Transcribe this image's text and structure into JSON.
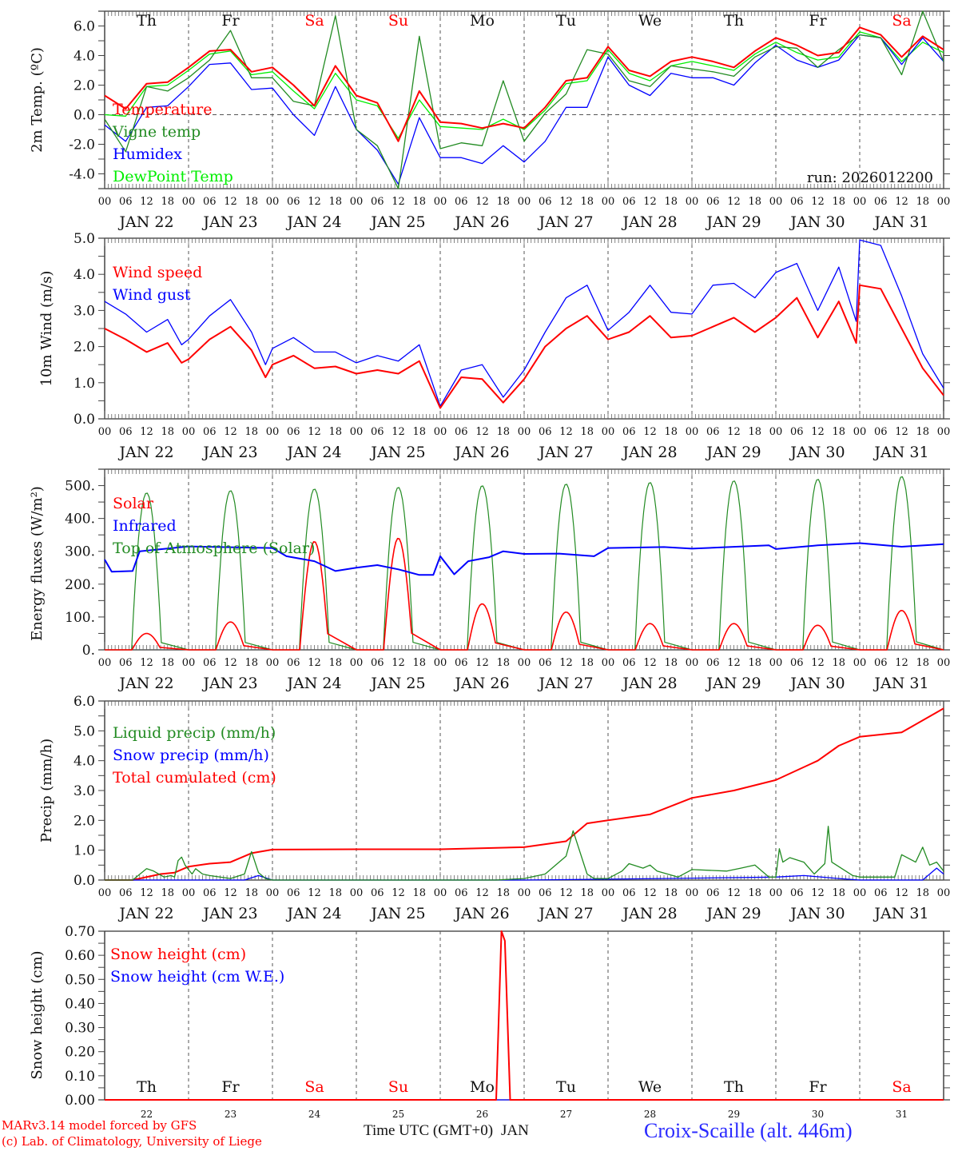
{
  "footer": {
    "model": "MARv3.14 model forced by GFS",
    "copyright": "(c) Lab. of Climatology, University of Liege",
    "xlabel": "Time UTC (GMT+0)",
    "xlabel_overlap": "JAN",
    "station": "Croix-Scaille (alt. 446m)"
  },
  "colors": {
    "red": "#ff0000",
    "green": "#228b22",
    "blue": "#0000ff",
    "lightgreen": "#00ee00",
    "weekend": "#ff0000"
  },
  "days": [
    "Th",
    "Fr",
    "Sa",
    "Su",
    "Mo",
    "Tu",
    "We",
    "Th",
    "Fr",
    "Sa"
  ],
  "weekend_flags": [
    false,
    false,
    true,
    true,
    false,
    false,
    false,
    false,
    false,
    true
  ],
  "date_labels": [
    "JAN 22",
    "JAN 23",
    "JAN 24",
    "JAN 25",
    "JAN 26",
    "JAN 27",
    "JAN 28",
    "JAN 29",
    "JAN 30",
    "JAN 31"
  ],
  "bottom_day_numbers": [
    "22",
    "23",
    "24",
    "25",
    "26",
    "27",
    "28",
    "29",
    "30",
    "31"
  ],
  "hour_ticks": [
    "00",
    "06",
    "12",
    "18"
  ],
  "hour_end": "00",
  "chart_data": [
    {
      "type": "line",
      "title": "2m Temperature",
      "ylabel": "2m Temp. (ºC)",
      "ylim": [
        -5,
        7
      ],
      "yticks": [
        "-4.0",
        "-2.0",
        "0.0",
        "2.0",
        "4.0",
        "6.0"
      ],
      "ytick_values": [
        -4,
        -2,
        0,
        2,
        4,
        6
      ],
      "annotation": "run: 2026012200",
      "x_hours": [
        0,
        6,
        12,
        18,
        24,
        30,
        36,
        42,
        48,
        54,
        60,
        66,
        72,
        78,
        84,
        90,
        96,
        102,
        108,
        114,
        120,
        126,
        132,
        138,
        144,
        150,
        156,
        162,
        168,
        174,
        180,
        186,
        192,
        198,
        204,
        210,
        216,
        222,
        228,
        234,
        240
      ],
      "series": [
        {
          "name": "Temperature",
          "color": "red",
          "values": [
            1.3,
            0.4,
            2.1,
            2.2,
            3.2,
            4.3,
            4.4,
            2.9,
            3.2,
            2.0,
            0.6,
            3.3,
            1.3,
            0.8,
            -1.8,
            1.6,
            -0.5,
            -0.6,
            -0.9,
            -0.6,
            -0.9,
            0.5,
            2.3,
            2.5,
            4.6,
            3.0,
            2.6,
            3.6,
            3.9,
            3.6,
            3.2,
            4.3,
            5.2,
            4.7,
            4.0,
            4.2,
            5.9,
            5.4,
            3.9,
            5.3,
            4.4
          ]
        },
        {
          "name": "Vigne temp",
          "color": "green",
          "values": [
            -0.3,
            -2.5,
            1.9,
            1.6,
            2.5,
            3.7,
            5.7,
            2.5,
            2.5,
            0.9,
            0.6,
            6.7,
            -1.0,
            -2.1,
            -5.0,
            5.3,
            -2.3,
            -1.9,
            -2.1,
            2.3,
            -1.8,
            0.1,
            1.4,
            4.4,
            4.1,
            2.3,
            1.9,
            3.3,
            3.1,
            2.9,
            2.6,
            3.9,
            4.6,
            4.5,
            3.2,
            4.4,
            5.4,
            5.2,
            2.7,
            7.0,
            3.6
          ]
        },
        {
          "name": "Humidex",
          "color": "blue",
          "values": [
            -0.7,
            -1.8,
            0.5,
            0.6,
            1.9,
            3.4,
            3.5,
            1.7,
            1.8,
            0.0,
            -1.4,
            1.9,
            -1.0,
            -2.4,
            -4.7,
            -0.2,
            -2.9,
            -2.9,
            -3.3,
            -2.1,
            -3.2,
            -1.8,
            0.5,
            0.5,
            3.9,
            2.0,
            1.3,
            2.8,
            2.5,
            2.5,
            2.0,
            3.5,
            4.7,
            3.7,
            3.2,
            3.7,
            5.4,
            5.2,
            3.4,
            5.2,
            3.6
          ]
        },
        {
          "name": "DewPoint Temp",
          "color": "lightgreen",
          "values": [
            0.0,
            -0.1,
            1.9,
            2.0,
            3.0,
            4.1,
            4.3,
            2.7,
            2.9,
            1.6,
            0.4,
            2.8,
            1.0,
            0.6,
            -1.6,
            1.0,
            -0.8,
            -0.9,
            -1.0,
            -0.3,
            -1.0,
            0.3,
            2.1,
            2.3,
            4.4,
            2.8,
            2.3,
            3.3,
            3.6,
            3.3,
            3.0,
            4.1,
            4.9,
            4.2,
            3.7,
            3.9,
            5.6,
            5.2,
            3.6,
            4.9,
            4.2
          ]
        }
      ]
    },
    {
      "type": "line",
      "title": "10m Wind",
      "ylabel": "10m Wind (m/s)",
      "ylim": [
        0,
        5
      ],
      "yticks": [
        "0.0",
        "1.0",
        "2.0",
        "3.0",
        "4.0",
        "5.0"
      ],
      "ytick_values": [
        0,
        1,
        2,
        3,
        4,
        5
      ],
      "x_hours": [
        0,
        6,
        12,
        18,
        22,
        24,
        30,
        36,
        42,
        46,
        48,
        54,
        60,
        66,
        72,
        78,
        84,
        90,
        96,
        102,
        108,
        114,
        120,
        126,
        132,
        138,
        144,
        150,
        156,
        162,
        168,
        174,
        180,
        186,
        192,
        198,
        204,
        210,
        215,
        216,
        222,
        228,
        234,
        240
      ],
      "series": [
        {
          "name": "Wind speed",
          "color": "red",
          "values": [
            2.5,
            2.2,
            1.85,
            2.1,
            1.55,
            1.65,
            2.2,
            2.55,
            1.9,
            1.15,
            1.5,
            1.75,
            1.4,
            1.45,
            1.25,
            1.35,
            1.25,
            1.6,
            0.3,
            1.15,
            1.1,
            0.45,
            1.1,
            2.0,
            2.5,
            2.85,
            2.2,
            2.4,
            2.85,
            2.25,
            2.3,
            2.55,
            2.8,
            2.4,
            2.8,
            3.35,
            2.25,
            3.25,
            2.1,
            3.7,
            3.6,
            2.5,
            1.4,
            0.65
          ]
        },
        {
          "name": "Wind gust",
          "color": "blue",
          "values": [
            3.25,
            2.9,
            2.4,
            2.75,
            2.05,
            2.2,
            2.85,
            3.3,
            2.4,
            1.5,
            1.95,
            2.25,
            1.85,
            1.85,
            1.55,
            1.75,
            1.6,
            2.05,
            0.35,
            1.35,
            1.5,
            0.6,
            1.35,
            2.4,
            3.35,
            3.7,
            2.45,
            2.95,
            3.7,
            2.95,
            2.9,
            3.7,
            3.75,
            3.35,
            4.05,
            4.3,
            3.0,
            4.2,
            2.7,
            4.95,
            4.8,
            3.4,
            1.8,
            0.85
          ]
        }
      ]
    },
    {
      "type": "line",
      "title": "Energy fluxes",
      "ylabel": "Energy fluxes (W/m²)",
      "ylim": [
        0,
        550
      ],
      "yticks": [
        "0.",
        "100.",
        "200.",
        "300.",
        "400.",
        "500."
      ],
      "ytick_values": [
        0,
        100,
        200,
        300,
        400,
        500
      ],
      "solar_peaks": [
        50,
        85,
        330,
        340,
        140,
        115,
        80,
        80,
        75,
        120
      ],
      "toa_peaks": [
        478,
        485,
        490,
        495,
        500,
        505,
        510,
        515,
        520,
        528
      ],
      "series": [
        {
          "name": "Solar",
          "color": "red",
          "values_note": "daily peaks",
          "values": [
            50,
            85,
            330,
            340,
            140,
            115,
            80,
            80,
            75,
            120
          ]
        },
        {
          "name": "Infrared",
          "color": "blue",
          "x_hours": [
            0,
            2,
            8,
            10,
            24,
            48,
            52,
            60,
            66,
            72,
            78,
            84,
            90,
            94,
            96,
            100,
            104,
            110,
            114,
            120,
            130,
            140,
            144,
            160,
            168,
            190,
            192,
            204,
            216,
            228,
            240
          ],
          "values": [
            275,
            238,
            240,
            300,
            315,
            310,
            285,
            270,
            240,
            250,
            258,
            245,
            228,
            228,
            285,
            230,
            270,
            282,
            300,
            292,
            293,
            285,
            310,
            313,
            308,
            318,
            307,
            318,
            325,
            314,
            322
          ]
        },
        {
          "name": "Top of Atmosphere (Solar)",
          "color": "green",
          "values_note": "daily peaks",
          "values": [
            478,
            485,
            490,
            495,
            500,
            505,
            510,
            515,
            520,
            528
          ]
        }
      ]
    },
    {
      "type": "line",
      "title": "Precip",
      "ylabel": "Precip (mm/h)",
      "ylim": [
        0,
        6
      ],
      "yticks": [
        "0.0",
        "1.0",
        "2.0",
        "3.0",
        "4.0",
        "5.0",
        "6.0"
      ],
      "ytick_values": [
        0,
        1,
        2,
        3,
        4,
        5,
        6
      ],
      "series": [
        {
          "name": "Liquid precip (mm/h)",
          "color": "green",
          "x_hours": [
            0,
            8,
            12,
            14,
            17,
            19,
            20,
            21,
            22,
            23,
            25,
            26,
            28,
            30,
            36,
            40,
            42,
            44,
            46,
            48,
            112,
            120,
            126,
            132,
            134,
            138,
            140,
            144,
            148,
            150,
            154,
            156,
            158,
            164,
            168,
            178,
            182,
            186,
            190,
            192,
            193,
            194,
            196,
            200,
            203,
            206,
            207,
            208,
            214,
            216,
            226,
            228,
            232,
            234,
            236,
            238,
            240
          ],
          "values": [
            0,
            0,
            0.38,
            0.3,
            0.1,
            0.15,
            0.1,
            0.65,
            0.77,
            0.5,
            0.2,
            0.38,
            0.2,
            0.15,
            0.05,
            0.2,
            0.95,
            0.25,
            0.05,
            0.0,
            0.0,
            0.05,
            0.2,
            0.8,
            1.65,
            0.2,
            0.05,
            0.05,
            0.3,
            0.55,
            0.4,
            0.5,
            0.3,
            0.1,
            0.35,
            0.3,
            0.4,
            0.5,
            0.1,
            0.1,
            1.05,
            0.6,
            0.75,
            0.6,
            0.2,
            0.55,
            1.8,
            0.6,
            0.15,
            0.1,
            0.1,
            0.85,
            0.6,
            1.1,
            0.5,
            0.6,
            0.3
          ]
        },
        {
          "name": "Snow precip (mm/h)",
          "color": "blue",
          "x_hours": [
            0,
            40,
            44,
            48,
            120,
            160,
            192,
            200,
            210,
            216,
            234,
            238,
            240
          ],
          "values": [
            0,
            0,
            0.15,
            0,
            0,
            0.05,
            0.1,
            0.15,
            0.05,
            0,
            0,
            0.4,
            0.2
          ]
        },
        {
          "name": "Total cumulated (cm)",
          "color": "red",
          "x_hours": [
            0,
            8,
            16,
            20,
            24,
            30,
            36,
            42,
            48,
            72,
            96,
            120,
            132,
            138,
            144,
            156,
            168,
            180,
            192,
            204,
            210,
            216,
            228,
            234,
            240
          ],
          "values": [
            0,
            0,
            0.2,
            0.25,
            0.45,
            0.55,
            0.6,
            0.9,
            1.02,
            1.03,
            1.03,
            1.1,
            1.3,
            1.9,
            2.0,
            2.2,
            2.75,
            3.0,
            3.35,
            4.0,
            4.5,
            4.8,
            4.95,
            5.35,
            5.75
          ]
        }
      ]
    },
    {
      "type": "line",
      "title": "Snow height",
      "ylabel": "Snow height (cm)",
      "ylim": [
        0,
        0.7
      ],
      "yticks": [
        "0.00",
        "0.10",
        "0.20",
        "0.30",
        "0.40",
        "0.50",
        "0.60",
        "0.70"
      ],
      "ytick_values": [
        0,
        0.1,
        0.2,
        0.3,
        0.4,
        0.5,
        0.6,
        0.7
      ],
      "series": [
        {
          "name": "Snow height (cm)",
          "color": "red",
          "x_hours": [
            0,
            112,
            113.5,
            114.5,
            116,
            240
          ],
          "values": [
            0,
            0,
            0.7,
            0.66,
            0,
            0
          ]
        },
        {
          "name": "Snow height (cm W.E.)",
          "color": "blue",
          "x_hours": [
            0,
            240
          ],
          "values": [
            0,
            0
          ]
        }
      ]
    }
  ]
}
